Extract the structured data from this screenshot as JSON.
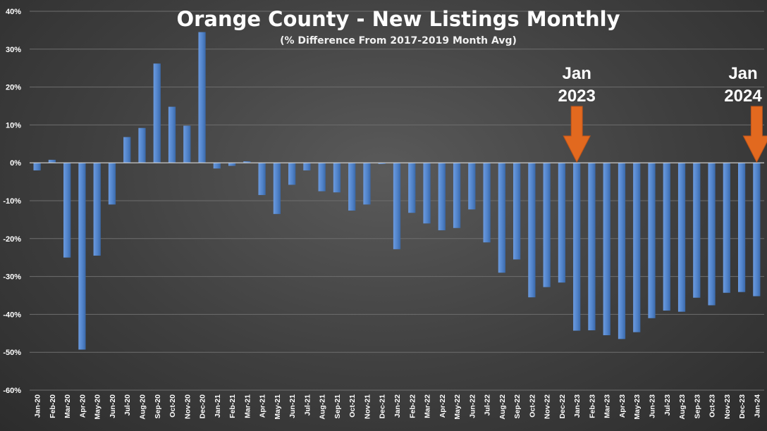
{
  "chart_data": {
    "type": "bar",
    "title": "Orange County - New Listings Monthly",
    "subtitle": "(% Difference From 2017-2019 Month Avg)",
    "xlabel": "",
    "ylabel": "",
    "ylim": [
      -60,
      40
    ],
    "yticks": [
      40,
      30,
      20,
      10,
      0,
      -10,
      -20,
      -30,
      -40,
      -50,
      -60
    ],
    "ytick_labels": [
      "40%",
      "30%",
      "20%",
      "10%",
      "0%",
      "-10%",
      "-20%",
      "-30%",
      "-40%",
      "-50%",
      "-60%"
    ],
    "grid": true,
    "bar_color": "#4f81c7",
    "annotation_color": "#e2691f",
    "categories": [
      "Jan-20",
      "Feb-20",
      "Mar-20",
      "Apr-20",
      "May-20",
      "Jun-20",
      "Jul-20",
      "Aug-20",
      "Sep-20",
      "Oct-20",
      "Nov-20",
      "Dec-20",
      "Jan-21",
      "Feb-21",
      "Mar-21",
      "Apr-21",
      "May-21",
      "Jun-21",
      "Jul-21",
      "Aug-21",
      "Sep-21",
      "Oct-21",
      "Nov-21",
      "Dec-21",
      "Jan-22",
      "Feb-22",
      "Mar-22",
      "Apr-22",
      "May-22",
      "Jun-22",
      "Jul-22",
      "Aug-22",
      "Sep-22",
      "Oct-22",
      "Nov-22",
      "Dec-22",
      "Jan-23",
      "Feb-23",
      "Mar-23",
      "Apr-23",
      "May-23",
      "Jun-23",
      "Jul-23",
      "Aug-23",
      "Sep-23",
      "Oct-23",
      "Nov-23",
      "Dec-23",
      "Jan-24"
    ],
    "values": [
      -2,
      0.8,
      -25,
      -49.3,
      -24.5,
      -11,
      6.8,
      9.2,
      26.2,
      14.8,
      9.8,
      34.5,
      -1.5,
      -0.8,
      0.4,
      -8.5,
      -13.5,
      -5.8,
      -2,
      -7.5,
      -7.8,
      -12.6,
      -11,
      -0.3,
      -22.8,
      -13.2,
      -16,
      -17.8,
      -17.2,
      -12.3,
      -21,
      -29,
      -25.5,
      -35.5,
      -32.8,
      -31.6,
      -44.3,
      -44.2,
      -45.5,
      -46.5,
      -44.7,
      -41,
      -39,
      -39.3,
      -35.6,
      -37.6,
      -34.3,
      -34.1,
      -35.2
    ],
    "annotations": [
      {
        "category": "Jan-23",
        "line1": "Jan",
        "line2": "2023"
      },
      {
        "category": "Jan-24",
        "line1": "Jan",
        "line2": "2024"
      }
    ]
  }
}
